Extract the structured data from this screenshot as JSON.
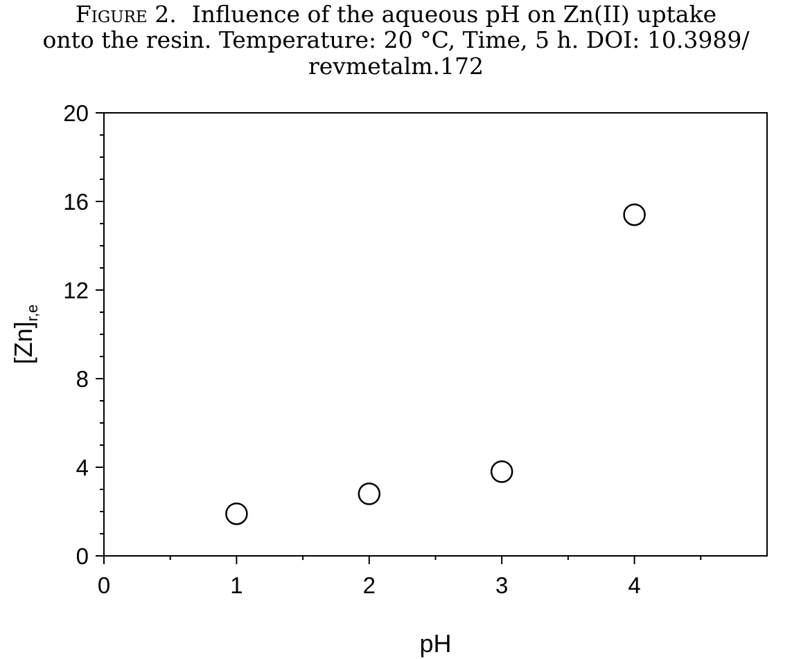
{
  "figure": {
    "label": "Figure 2.",
    "text_line1": "Influence of the aqueous pH on Zn(II) uptake",
    "text_line2": "onto the resin. Temperature: 20 °C, Time, 5 h.  DOI: 10.3989/",
    "text_line3": "revmetalm.172"
  },
  "chart_data": {
    "type": "scatter",
    "title": "",
    "xlabel": "pH",
    "ylabel_main": "[Zn]",
    "ylabel_sub": "r,e",
    "xlim": [
      0,
      5
    ],
    "ylim": [
      0,
      20
    ],
    "xticks": [
      0,
      1,
      2,
      3,
      4
    ],
    "yticks": [
      0,
      4,
      8,
      12,
      16,
      20
    ],
    "marker": "open-circle",
    "grid": false,
    "legend": "none",
    "x": [
      1,
      2,
      3,
      4
    ],
    "y": [
      1.9,
      2.8,
      3.8,
      15.4
    ]
  }
}
